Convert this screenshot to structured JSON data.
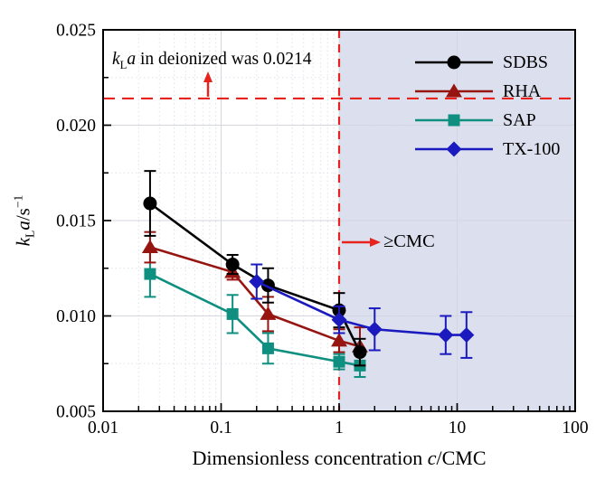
{
  "chart_data": {
    "type": "line",
    "x_scale": "log",
    "xlim": [
      0.01,
      100
    ],
    "ylim": [
      0.005,
      0.025
    ],
    "xlabel_prefix": "Dimensionless concentration ",
    "xlabel_italic": "c",
    "xlabel_suffix": "/CMC",
    "ylabel_parts": {
      "k": "k",
      "sub": "L",
      "a": "a",
      "unit": "/s",
      "exp": "−1"
    },
    "x_ticks": [
      {
        "v": 0.01,
        "label": "0.01"
      },
      {
        "v": 0.1,
        "label": "0.1"
      },
      {
        "v": 1,
        "label": "1"
      },
      {
        "v": 10,
        "label": "10"
      },
      {
        "v": 100,
        "label": "100"
      }
    ],
    "y_ticks": [
      {
        "v": 0.005,
        "label": "0.005"
      },
      {
        "v": 0.01,
        "label": "0.010"
      },
      {
        "v": 0.015,
        "label": "0.015"
      },
      {
        "v": 0.02,
        "label": "0.020"
      },
      {
        "v": 0.025,
        "label": "0.025"
      }
    ],
    "y_minor_ticks": [
      0.0075,
      0.0125,
      0.0175,
      0.0225
    ],
    "grid": "on",
    "legend_position": "top-right-inside",
    "shaded_region": {
      "from_x": 1,
      "to_x": 100,
      "color": "#dbdfee"
    },
    "reference_lines": {
      "horizontal": {
        "y": 0.0214,
        "color": "#e8231e",
        "style": "dashed"
      },
      "vertical": {
        "x": 1,
        "color": "#e8231e",
        "style": "dashed"
      }
    },
    "series": [
      {
        "name": "SDBS",
        "marker": "circle",
        "color": "#000000",
        "x": [
          0.025,
          0.125,
          0.25,
          1.0,
          1.5
        ],
        "y": [
          0.0159,
          0.0127,
          0.0116,
          0.0103,
          0.0081
        ],
        "yerr": [
          0.0017,
          0.0005,
          0.0009,
          0.0009,
          0.0007
        ]
      },
      {
        "name": "RHA",
        "marker": "triangle",
        "color": "#971511",
        "x": [
          0.025,
          0.125,
          0.25,
          1.0,
          1.5
        ],
        "y": [
          0.0136,
          0.0123,
          0.0101,
          0.0087,
          0.0084
        ],
        "yerr": [
          0.0008,
          0.0004,
          0.0009,
          0.0006,
          0.001
        ]
      },
      {
        "name": "SAP",
        "marker": "square",
        "color": "#0e8f80",
        "x": [
          0.025,
          0.125,
          0.25,
          1.0,
          1.5
        ],
        "y": [
          0.0122,
          0.0101,
          0.0083,
          0.0076,
          0.0074
        ],
        "yerr": [
          0.0012,
          0.001,
          0.0008,
          0.0004,
          0.0006
        ]
      },
      {
        "name": "TX-100",
        "marker": "diamond",
        "color": "#1a1abe",
        "x": [
          0.2,
          1.0,
          2.0,
          8.0,
          12.0
        ],
        "y": [
          0.0118,
          0.0098,
          0.0093,
          0.009,
          0.009
        ],
        "yerr": [
          0.0009,
          0.0007,
          0.0011,
          0.001,
          0.0012
        ]
      }
    ]
  },
  "annotations": {
    "deionized": {
      "k": "k",
      "sub": "L",
      "a": "a",
      "rest": " in deionized was 0.0214"
    },
    "cmc": {
      "text": "≥CMC"
    },
    "arrow_color": "#e8231e"
  }
}
